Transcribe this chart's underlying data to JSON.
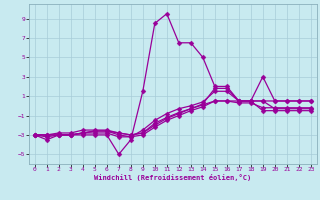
{
  "xlabel": "Windchill (Refroidissement éolien,°C)",
  "background_color": "#c8eaf0",
  "line_color": "#990099",
  "grid_color": "#a8ccd8",
  "xlim": [
    -0.5,
    23.5
  ],
  "ylim": [
    -6,
    10.5
  ],
  "xticks": [
    0,
    1,
    2,
    3,
    4,
    5,
    6,
    7,
    8,
    9,
    10,
    11,
    12,
    13,
    14,
    15,
    16,
    17,
    18,
    19,
    20,
    21,
    22,
    23
  ],
  "yticks": [
    -5,
    -3,
    -1,
    1,
    3,
    5,
    7,
    9
  ],
  "x": [
    0,
    1,
    2,
    3,
    4,
    5,
    6,
    7,
    8,
    9,
    10,
    11,
    12,
    13,
    14,
    15,
    16,
    17,
    18,
    19,
    20,
    21,
    22,
    23
  ],
  "series1": [
    -3,
    -3.5,
    -3,
    -3,
    -3,
    -3,
    -3,
    -5,
    -3.5,
    1.5,
    8.5,
    9.5,
    6.5,
    6.5,
    5,
    2,
    2,
    0.5,
    0.5,
    3,
    0.5,
    0.5,
    0.5,
    0.5
  ],
  "series2": [
    -3,
    -3,
    -2.8,
    -2.8,
    -2.5,
    -2.5,
    -2.5,
    -2.8,
    -3.0,
    -2.8,
    -1.8,
    -1.2,
    -0.7,
    -0.3,
    0.2,
    1.8,
    1.8,
    0.5,
    0.5,
    0.5,
    0.5,
    0.5,
    0.5,
    0.5
  ],
  "series3": [
    -3,
    -3,
    -3,
    -3,
    -2.8,
    -2.8,
    -2.8,
    -3.2,
    -3.2,
    -2.5,
    -1.5,
    -0.8,
    -0.3,
    0.0,
    0.4,
    1.5,
    1.5,
    0.5,
    0.5,
    0.5,
    -0.3,
    -0.3,
    -0.3,
    -0.3
  ],
  "series4": [
    -3,
    -3,
    -3,
    -3,
    -2.8,
    -2.6,
    -2.6,
    -3.0,
    -3.2,
    -3.0,
    -2.2,
    -1.5,
    -1.0,
    -0.5,
    -0.1,
    0.5,
    0.5,
    0.3,
    0.3,
    -0.2,
    -0.2,
    -0.2,
    -0.2,
    -0.2
  ],
  "series5": [
    -3,
    -3.2,
    -3,
    -3,
    -2.8,
    -2.6,
    -2.6,
    -2.8,
    -3.0,
    -2.8,
    -2.0,
    -1.3,
    -0.8,
    -0.3,
    0.1,
    0.5,
    0.5,
    0.5,
    0.5,
    -0.5,
    -0.5,
    -0.5,
    -0.5,
    -0.5
  ],
  "markersize": 2.5,
  "linewidth": 0.9
}
